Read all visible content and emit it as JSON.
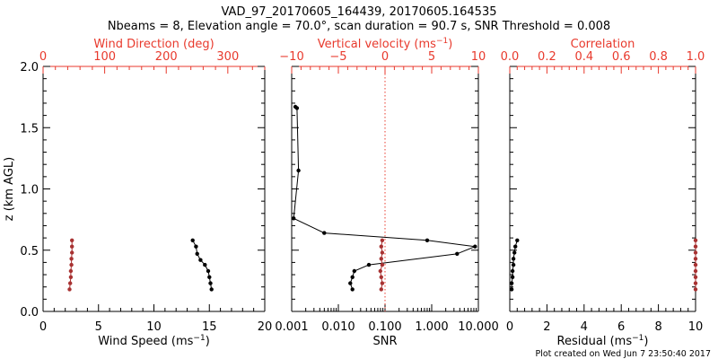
{
  "figure": {
    "title_line1": "VAD_97_20170605_164439, 20170605.164535",
    "title_line2": "Nbeams = 8, Elevation angle = 70.0°, scan duration = 90.7 s, SNR Threshold = 0.008",
    "footer": "Plot created on Wed Jun  7 23:50:40 2017",
    "colors": {
      "black": "#000000",
      "red": "#e8392c",
      "dark_red": "#a83232"
    }
  },
  "chart_data": [
    {
      "type": "line",
      "panel": "wind",
      "ylabel": "z (km AGL)",
      "ylim": [
        0,
        2.0
      ],
      "yticks": [
        "0.0",
        "0.5",
        "1.0",
        "1.5",
        "2.0"
      ],
      "bottom_axis": {
        "label": "Wind Speed (ms",
        "label_sup": "−1",
        "label_end": ")",
        "range": [
          0,
          20
        ],
        "ticks": [
          "0",
          "5",
          "10",
          "15",
          "20"
        ]
      },
      "top_axis": {
        "label": "Wind Direction (deg)",
        "range": [
          0,
          360
        ],
        "ticks": [
          "0",
          "100",
          "200",
          "300"
        ]
      },
      "series": [
        {
          "name": "Wind Speed",
          "axis": "bottom",
          "color": "#000000",
          "x": [
            15.2,
            15.1,
            15.0,
            14.9,
            14.6,
            14.2,
            13.9,
            13.8,
            13.5
          ],
          "y": [
            0.18,
            0.23,
            0.28,
            0.33,
            0.38,
            0.42,
            0.47,
            0.53,
            0.58
          ]
        },
        {
          "name": "Wind Direction",
          "axis": "top",
          "color": "#a83232",
          "x": [
            43,
            44,
            45,
            45,
            46,
            46,
            47,
            47,
            47
          ],
          "y": [
            0.18,
            0.23,
            0.28,
            0.33,
            0.38,
            0.43,
            0.48,
            0.53,
            0.58
          ]
        }
      ]
    },
    {
      "type": "line",
      "panel": "snr",
      "ylim": [
        0,
        2.0
      ],
      "bottom_axis": {
        "label": "SNR",
        "scale": "log",
        "range": [
          0.001,
          10
        ],
        "ticks": [
          "0.001",
          "0.010",
          "0.100",
          "1.000",
          "10.000"
        ]
      },
      "top_axis": {
        "label": "Vertical velocity (ms",
        "label_sup": "−1",
        "label_end": ")",
        "range": [
          -10,
          10
        ],
        "ticks": [
          "−10",
          "−5",
          "0",
          "5",
          "10"
        ]
      },
      "reference_line": {
        "axis": "top",
        "value": 0,
        "style": "dotted",
        "color": "#e8392c"
      },
      "series": [
        {
          "name": "SNR",
          "axis": "bottom",
          "color": "#000000",
          "x": [
            0.02,
            0.018,
            0.02,
            0.022,
            0.045,
            3.5,
            8.5,
            0.8,
            0.005,
            0.0011,
            0.0014,
            0.0013,
            0.0012
          ],
          "y": [
            0.18,
            0.23,
            0.28,
            0.33,
            0.38,
            0.47,
            0.53,
            0.58,
            0.64,
            0.76,
            1.15,
            1.66,
            1.67
          ]
        },
        {
          "name": "Vertical velocity",
          "axis": "top",
          "color": "#a83232",
          "x": [
            -0.4,
            -0.3,
            -0.4,
            -0.5,
            -0.3,
            -0.4,
            -0.3,
            -0.4,
            -0.3
          ],
          "y": [
            0.18,
            0.23,
            0.28,
            0.33,
            0.38,
            0.43,
            0.48,
            0.53,
            0.58
          ]
        }
      ]
    },
    {
      "type": "line",
      "panel": "correlation",
      "ylim": [
        0,
        2.0
      ],
      "bottom_axis": {
        "label": "Residual (ms",
        "label_sup": "−1",
        "label_end": ")",
        "range": [
          0,
          10
        ],
        "ticks": [
          "0",
          "2",
          "4",
          "6",
          "8",
          "10"
        ]
      },
      "top_axis": {
        "label": "Correlation",
        "range": [
          0,
          1.0
        ],
        "ticks": [
          "0.0",
          "0.2",
          "0.4",
          "0.6",
          "0.8",
          "1.0"
        ]
      },
      "series": [
        {
          "name": "Residual",
          "axis": "bottom",
          "color": "#000000",
          "x": [
            0.1,
            0.1,
            0.15,
            0.15,
            0.2,
            0.2,
            0.25,
            0.3,
            0.4
          ],
          "y": [
            0.18,
            0.23,
            0.28,
            0.33,
            0.38,
            0.43,
            0.48,
            0.53,
            0.58
          ]
        },
        {
          "name": "Correlation",
          "axis": "top",
          "color": "#a83232",
          "x": [
            1.0,
            1.0,
            1.0,
            1.0,
            1.0,
            1.0,
            1.0,
            1.0,
            1.0
          ],
          "y": [
            0.18,
            0.23,
            0.28,
            0.33,
            0.38,
            0.43,
            0.48,
            0.53,
            0.58
          ]
        }
      ]
    }
  ]
}
